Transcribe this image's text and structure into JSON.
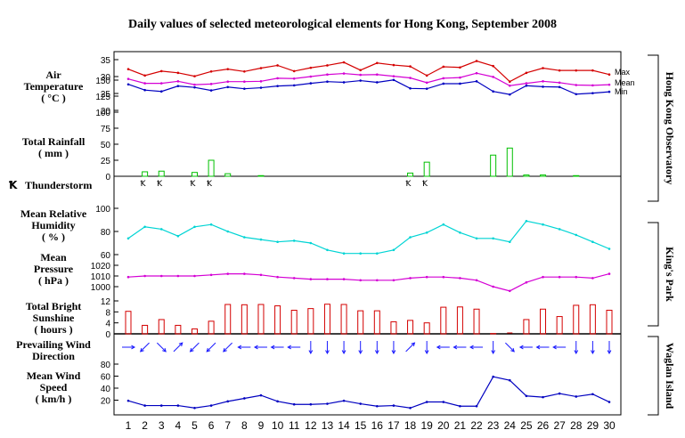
{
  "title": "Daily values of selected meteorological elements for Hong Kong, September 2008",
  "panel_labels": {
    "temp": [
      "Air",
      "Temperature",
      "( °C )"
    ],
    "rain": [
      "Total Rainfall",
      "( mm )"
    ],
    "thunder": "Thunderstorm",
    "rh": [
      "Mean Relative",
      "Humidity",
      "( % )"
    ],
    "pres": [
      "Mean",
      "Pressure",
      "( hPa )"
    ],
    "sun": [
      "Total Bright",
      "Sunshine",
      "( hours )"
    ],
    "dir": [
      "Prevailing Wind",
      "Direction"
    ],
    "wind": [
      "Mean Wind",
      "Speed",
      "( km/h )"
    ]
  },
  "station_labels": [
    "Hong Kong Observatory",
    "King's Park",
    "Waglan Island"
  ],
  "colors": {
    "max": "#d40000",
    "mean": "#d400d4",
    "min": "#0000c0",
    "rain": "#00c000",
    "rh": "#00d4d4",
    "pres": "#d400d4",
    "sun": "#d40000",
    "wind": "#0000c0",
    "arrow": "#1a1aff"
  },
  "chart_data": [
    {
      "type": "line",
      "panel": "temp",
      "x": [
        1,
        2,
        3,
        4,
        5,
        6,
        7,
        8,
        9,
        10,
        11,
        12,
        13,
        14,
        15,
        16,
        17,
        18,
        19,
        20,
        21,
        22,
        23,
        24,
        25,
        26,
        27,
        28,
        29,
        30
      ],
      "y_ticks": [
        "20",
        "25",
        "30",
        "35"
      ],
      "ylim": [
        20,
        35
      ],
      "series": [
        {
          "name": "Max",
          "values": [
            32.2,
            30.3,
            31.6,
            31.1,
            30.1,
            31.5,
            32.2,
            31.5,
            32.5,
            33.3,
            31.6,
            32.6,
            33.3,
            34.2,
            31.9,
            34.0,
            33.4,
            33.0,
            30.3,
            32.9,
            32.7,
            34.6,
            33.1,
            28.5,
            31.1,
            32.5,
            31.8,
            31.8,
            31.8,
            30.6
          ]
        },
        {
          "name": "Mean",
          "values": [
            29.3,
            28.0,
            28.0,
            28.6,
            27.6,
            27.8,
            28.5,
            28.5,
            28.6,
            29.5,
            29.4,
            30.0,
            30.6,
            30.9,
            30.5,
            30.6,
            30.1,
            29.6,
            28.2,
            29.5,
            29.7,
            31.0,
            29.9,
            27.3,
            28.0,
            28.6,
            28.2,
            27.5,
            27.4,
            27.6
          ]
        },
        {
          "name": "Min",
          "values": [
            27.7,
            26.0,
            25.6,
            27.2,
            26.8,
            25.9,
            26.9,
            26.4,
            26.7,
            27.2,
            27.4,
            28.0,
            28.5,
            28.3,
            28.8,
            28.3,
            29.0,
            26.5,
            26.4,
            27.9,
            27.9,
            28.6,
            25.6,
            24.7,
            27.3,
            27.0,
            26.9,
            24.8,
            25.1,
            25.5
          ]
        }
      ]
    },
    {
      "type": "bar",
      "panel": "rain",
      "name": "Total Rainfall",
      "x": [
        1,
        2,
        3,
        4,
        5,
        6,
        7,
        8,
        9,
        10,
        11,
        12,
        13,
        14,
        15,
        16,
        17,
        18,
        19,
        20,
        21,
        22,
        23,
        24,
        25,
        26,
        27,
        28,
        29,
        30
      ],
      "y_ticks": [
        "0",
        "25",
        "50",
        "75",
        "100",
        "125",
        "150"
      ],
      "ylim": [
        0,
        150
      ],
      "values": [
        0,
        7,
        8,
        0,
        6,
        25,
        4,
        0,
        1,
        0,
        0,
        0,
        0,
        0,
        0,
        0,
        0,
        5,
        22,
        0,
        0,
        0,
        33,
        44,
        2,
        2,
        0,
        1,
        0,
        0
      ]
    },
    {
      "type": "scatter",
      "panel": "thunder",
      "name": "Thunderstorm",
      "days": [
        2,
        3,
        5,
        6,
        18,
        19
      ]
    },
    {
      "type": "line",
      "panel": "rh",
      "name": "Mean Relative Humidity",
      "x": [
        1,
        2,
        3,
        4,
        5,
        6,
        7,
        8,
        9,
        10,
        11,
        12,
        13,
        14,
        15,
        16,
        17,
        18,
        19,
        20,
        21,
        22,
        23,
        24,
        25,
        26,
        27,
        28,
        29,
        30
      ],
      "y_ticks": [
        "60",
        "80",
        "100"
      ],
      "ylim": [
        50,
        110
      ],
      "values": [
        74,
        84,
        82,
        76,
        84,
        86,
        80,
        75,
        73,
        71,
        72,
        70,
        64,
        61,
        61,
        61,
        64,
        75,
        79,
        86,
        79,
        74,
        74,
        71,
        89,
        86,
        82,
        77,
        71,
        65
      ]
    },
    {
      "type": "line",
      "panel": "pres",
      "name": "Mean Pressure",
      "x": [
        1,
        2,
        3,
        4,
        5,
        6,
        7,
        8,
        9,
        10,
        11,
        12,
        13,
        14,
        15,
        16,
        17,
        18,
        19,
        20,
        21,
        22,
        23,
        24,
        25,
        26,
        27,
        28,
        29,
        30
      ],
      "y_ticks": [
        "1000",
        "1010",
        "1020"
      ],
      "ylim": [
        995,
        1025
      ],
      "values": [
        1009,
        1010,
        1010,
        1010,
        1010,
        1011,
        1012,
        1012,
        1011,
        1009,
        1008,
        1007,
        1007,
        1007,
        1006,
        1006,
        1006,
        1008,
        1009,
        1009,
        1008,
        1006,
        1000,
        996,
        1004,
        1009,
        1009,
        1009,
        1008,
        1012
      ]
    },
    {
      "type": "bar",
      "panel": "sun",
      "name": "Total Bright Sunshine",
      "x": [
        1,
        2,
        3,
        4,
        5,
        6,
        7,
        8,
        9,
        10,
        11,
        12,
        13,
        14,
        15,
        16,
        17,
        18,
        19,
        20,
        21,
        22,
        23,
        24,
        25,
        26,
        27,
        28,
        29,
        30
      ],
      "y_ticks": [
        "0",
        "4",
        "8",
        "12"
      ],
      "ylim": [
        0,
        14
      ],
      "values": [
        8.2,
        3.1,
        5.2,
        3.1,
        1.8,
        4.6,
        10.7,
        10.6,
        10.7,
        10.2,
        8.6,
        9.2,
        10.8,
        10.7,
        8.4,
        8.4,
        4.4,
        4.9,
        4.0,
        9.7,
        9.8,
        9.0,
        0.1,
        0.0,
        5.2,
        9.0,
        6.3,
        10.4,
        10.6,
        8.6
      ]
    },
    {
      "type": "scatter",
      "panel": "dir",
      "name": "Prevailing Wind Direction",
      "x": [
        1,
        2,
        3,
        4,
        5,
        6,
        7,
        8,
        9,
        10,
        11,
        12,
        13,
        14,
        15,
        16,
        17,
        18,
        19,
        20,
        21,
        22,
        23,
        24,
        25,
        26,
        27,
        28,
        29,
        30
      ],
      "directions": [
        "W",
        "NE",
        "NW",
        "SW",
        "NE",
        "NE",
        "NE",
        "E",
        "E",
        "E",
        "E",
        "N",
        "N",
        "N",
        "N",
        "N",
        "N",
        "SW",
        "N",
        "E",
        "E",
        "E",
        "N",
        "NW",
        "E",
        "E",
        "E",
        "N",
        "N",
        "N"
      ]
    },
    {
      "type": "line",
      "panel": "wind",
      "name": "Mean Wind Speed",
      "x": [
        1,
        2,
        3,
        4,
        5,
        6,
        7,
        8,
        9,
        10,
        11,
        12,
        13,
        14,
        15,
        16,
        17,
        18,
        19,
        20,
        21,
        22,
        23,
        24,
        25,
        26,
        27,
        28,
        29,
        30
      ],
      "y_ticks": [
        "20",
        "40",
        "60",
        "80"
      ],
      "ylim": [
        0,
        100
      ],
      "values": [
        19,
        11,
        11,
        11,
        7,
        11,
        18,
        23,
        28,
        18,
        13,
        13,
        14,
        19,
        14,
        10,
        11,
        7,
        17,
        17,
        10,
        10,
        59,
        53,
        27,
        25,
        31,
        26,
        30,
        17
      ]
    }
  ]
}
